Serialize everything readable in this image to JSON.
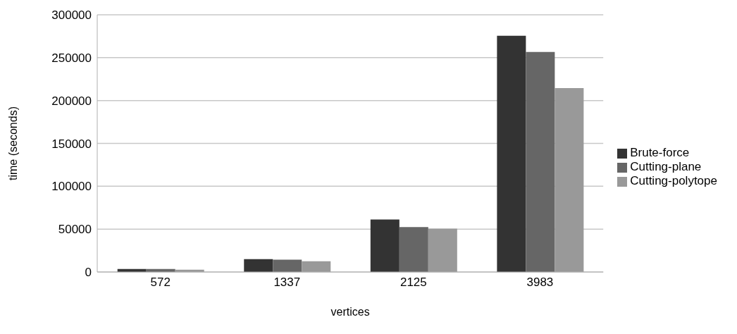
{
  "chart_data": {
    "type": "bar",
    "xlabel": "vertices",
    "ylabel": "time (seconds)",
    "categories": [
      "572",
      "1337",
      "2125",
      "3983"
    ],
    "series": [
      {
        "name": "Brute-force",
        "color": "#333333",
        "values": [
          3500,
          15100,
          61300,
          275500
        ]
      },
      {
        "name": "Cutting-plane",
        "color": "#666666",
        "values": [
          3500,
          14300,
          52300,
          256600
        ]
      },
      {
        "name": "Cutting-polytope",
        "color": "#999999",
        "values": [
          2700,
          12600,
          50600,
          214600
        ]
      }
    ],
    "ylim": [
      0,
      300000
    ],
    "yticks": [
      0,
      50000,
      100000,
      150000,
      200000,
      250000,
      300000
    ],
    "grid": "y",
    "legend": "right"
  }
}
